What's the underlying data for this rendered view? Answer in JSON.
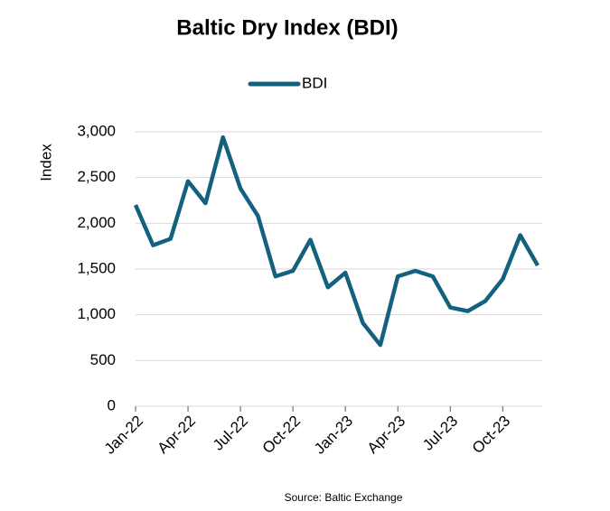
{
  "chart_data": {
    "type": "line",
    "title": "Baltic Dry Index (BDI)",
    "y_label": "Index",
    "source": "Source: Baltic Exchange",
    "categories": [
      "Jan-22",
      null,
      null,
      "Apr-22",
      null,
      null,
      "Jul-22",
      null,
      null,
      "Oct-22",
      null,
      null,
      "Jan-23",
      null,
      null,
      "Apr-23",
      null,
      null,
      "Jul-23",
      null,
      null,
      "Oct-23",
      null,
      null
    ],
    "series": [
      {
        "name": "BDI",
        "color": "#13607f",
        "values": [
          2200,
          1760,
          1830,
          2460,
          2220,
          2940,
          2380,
          2080,
          1420,
          1480,
          1820,
          1300,
          1460,
          910,
          670,
          1420,
          1480,
          1420,
          1080,
          1040,
          1150,
          1390,
          1870,
          1540
        ]
      }
    ],
    "ylim": [
      0,
      3000
    ],
    "yticks": [
      0,
      500,
      {
        "value": 1000,
        "label": "1,000"
      },
      {
        "value": 1500,
        "label": "1,500"
      },
      {
        "value": 2000,
        "label": "2,000"
      },
      {
        "value": 2500,
        "label": "2,500"
      },
      {
        "value": 3000,
        "label": "3,000"
      }
    ],
    "grid": true,
    "legend": "top"
  }
}
